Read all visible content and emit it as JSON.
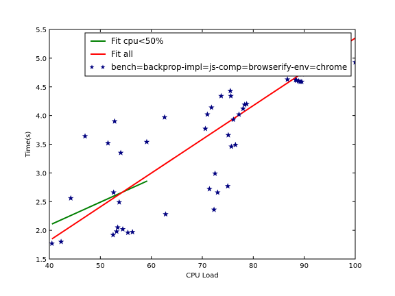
{
  "chart_data": {
    "type": "scatter",
    "xlabel": "CPU Load",
    "ylabel": "Time(s)",
    "xlim": [
      40,
      100
    ],
    "ylim": [
      1.5,
      5.5
    ],
    "xticks": [
      40,
      50,
      60,
      70,
      80,
      90,
      100
    ],
    "yticks": [
      1.5,
      2.0,
      2.5,
      3.0,
      3.5,
      4.0,
      4.5,
      5.0,
      5.5
    ],
    "xtick_labels": [
      "40",
      "50",
      "60",
      "70",
      "80",
      "90",
      "100"
    ],
    "ytick_labels": [
      "1.5",
      "2.0",
      "2.5",
      "3.0",
      "3.5",
      "4.0",
      "4.5",
      "5.0",
      "5.5"
    ],
    "legend_placement": "top-center",
    "grid": false,
    "series": [
      {
        "name": "Fit cpu<50%",
        "kind": "line",
        "color": "#007f00",
        "x": [
          40.5,
          59.2
        ],
        "y": [
          2.11,
          2.86
        ]
      },
      {
        "name": "Fit all",
        "kind": "line",
        "color": "#ff0000",
        "x": [
          40.5,
          100
        ],
        "y": [
          1.85,
          5.35
        ]
      },
      {
        "name": "bench=backprop-impl=js-comp=browserify-env=chrome",
        "kind": "scatter",
        "marker": "star",
        "color": "#00007f",
        "x": [
          40.5,
          42.3,
          44.2,
          47.0,
          51.5,
          52.5,
          52.6,
          52.8,
          53.2,
          53.4,
          53.7,
          54.0,
          54.4,
          55.4,
          56.3,
          59.1,
          62.6,
          62.8,
          70.6,
          71.0,
          71.4,
          71.8,
          72.3,
          72.5,
          73.0,
          73.7,
          75.0,
          75.1,
          75.5,
          75.6,
          75.7,
          76.1,
          76.5,
          77.2,
          78.0,
          78.3,
          78.7,
          86.7,
          88.3,
          88.5,
          88.9,
          89.2,
          89.5,
          89.5,
          100.0
        ],
        "y": [
          1.77,
          1.8,
          2.56,
          3.64,
          3.52,
          1.92,
          2.66,
          3.9,
          1.98,
          2.05,
          2.49,
          3.35,
          2.02,
          1.96,
          1.97,
          3.54,
          3.97,
          2.28,
          3.77,
          4.02,
          2.72,
          4.14,
          2.36,
          2.99,
          2.66,
          4.34,
          2.77,
          3.66,
          4.43,
          4.34,
          3.46,
          3.93,
          3.49,
          4.02,
          4.12,
          4.19,
          4.2,
          4.63,
          4.62,
          4.61,
          4.6,
          4.59,
          4.59,
          4.72,
          4.93
        ]
      }
    ]
  }
}
